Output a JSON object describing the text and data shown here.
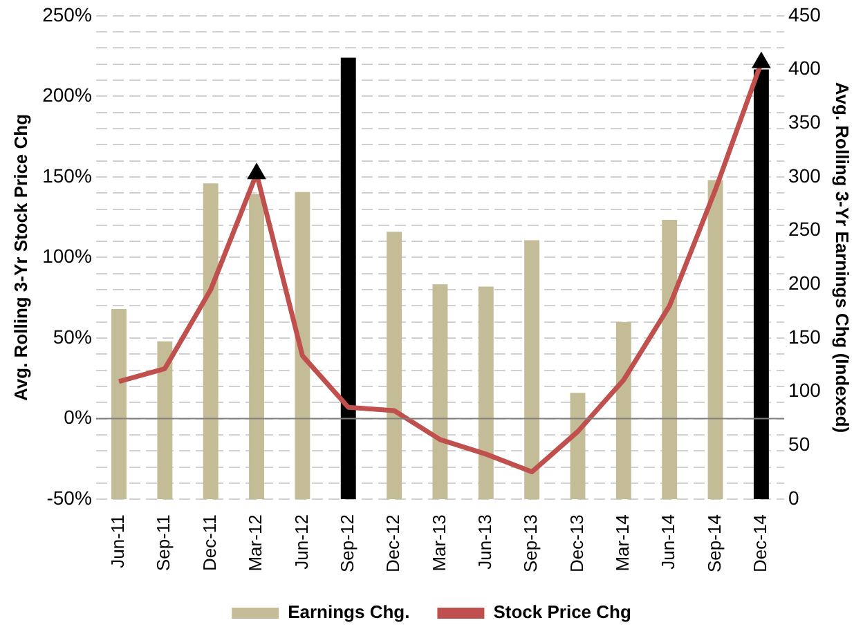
{
  "chart_data": {
    "type": "bar",
    "ylabel": "Avg. Rolling 3-Yr Stock Price Chg",
    "y2label": "Avg. Rolling 3-Yr Earnings Chg (Indexed)",
    "categories": [
      "Jun-11",
      "Sep-11",
      "Dec-11",
      "Mar-12",
      "Jun-12",
      "Sep-12",
      "Dec-12",
      "Mar-13",
      "Jun-13",
      "Sep-13",
      "Dec-13",
      "Mar-14",
      "Jun-14",
      "Sep-14",
      "Dec-14"
    ],
    "series": [
      {
        "name": "Earnings Chg.",
        "axis": "y2",
        "color": "#c4bc96",
        "colors": [
          "#c4bc96",
          "#c4bc96",
          "#c4bc96",
          "#c4bc96",
          "#c4bc96",
          "#000000",
          "#c4bc96",
          "#c4bc96",
          "#c4bc96",
          "#c4bc96",
          "#c4bc96",
          "#c4bc96",
          "#c4bc96",
          "#c4bc96",
          "#000000"
        ],
        "values": [
          177,
          147,
          294,
          284,
          286,
          411,
          249,
          200,
          198,
          241,
          99,
          165,
          260,
          297,
          400
        ]
      },
      {
        "name": "Stock Price Chg",
        "type": "line",
        "color": "#c0504d",
        "marker": "none",
        "line_style": "solid",
        "values": [
          23,
          31,
          80,
          152,
          39,
          7,
          5,
          -13,
          -22,
          -33,
          -8,
          24,
          70,
          142,
          221
        ]
      },
      {
        "type": "scatter",
        "color": "#000000",
        "marker": "triangle",
        "x": [
          "Mar-12",
          "Dec-14"
        ],
        "values": [
          152,
          221
        ]
      }
    ],
    "ylim": [
      -50,
      250
    ],
    "yticks": [
      {
        "value": -50,
        "label": "-50%"
      },
      {
        "value": -40,
        "label": null
      },
      {
        "value": -30,
        "label": null
      },
      {
        "value": -20,
        "label": null
      },
      {
        "value": -10,
        "label": null
      },
      {
        "value": 0,
        "label": "0%"
      },
      {
        "value": 10,
        "label": null
      },
      {
        "value": 20,
        "label": null
      },
      {
        "value": 30,
        "label": null
      },
      {
        "value": 40,
        "label": null
      },
      {
        "value": 50,
        "label": "50%"
      },
      {
        "value": 60,
        "label": null
      },
      {
        "value": 70,
        "label": null
      },
      {
        "value": 80,
        "label": null
      },
      {
        "value": 90,
        "label": null
      },
      {
        "value": 100,
        "label": "100%"
      },
      {
        "value": 110,
        "label": null
      },
      {
        "value": 120,
        "label": null
      },
      {
        "value": 130,
        "label": null
      },
      {
        "value": 140,
        "label": null
      },
      {
        "value": 150,
        "label": "150%"
      },
      {
        "value": 160,
        "label": null
      },
      {
        "value": 170,
        "label": null
      },
      {
        "value": 180,
        "label": null
      },
      {
        "value": 190,
        "label": null
      },
      {
        "value": 200,
        "label": "200%"
      },
      {
        "value": 210,
        "label": null
      },
      {
        "value": 220,
        "label": null
      },
      {
        "value": 230,
        "label": null
      },
      {
        "value": 240,
        "label": null
      },
      {
        "value": 250,
        "label": "250%"
      }
    ],
    "y2lim": [
      0,
      450
    ],
    "y2ticks": [
      0,
      50,
      100,
      150,
      200,
      250,
      300,
      350,
      400,
      450
    ],
    "ref_lines": [
      {
        "axis": "y",
        "value": 0,
        "color": "#808080"
      }
    ],
    "grid": "y",
    "legend": "bottom"
  }
}
